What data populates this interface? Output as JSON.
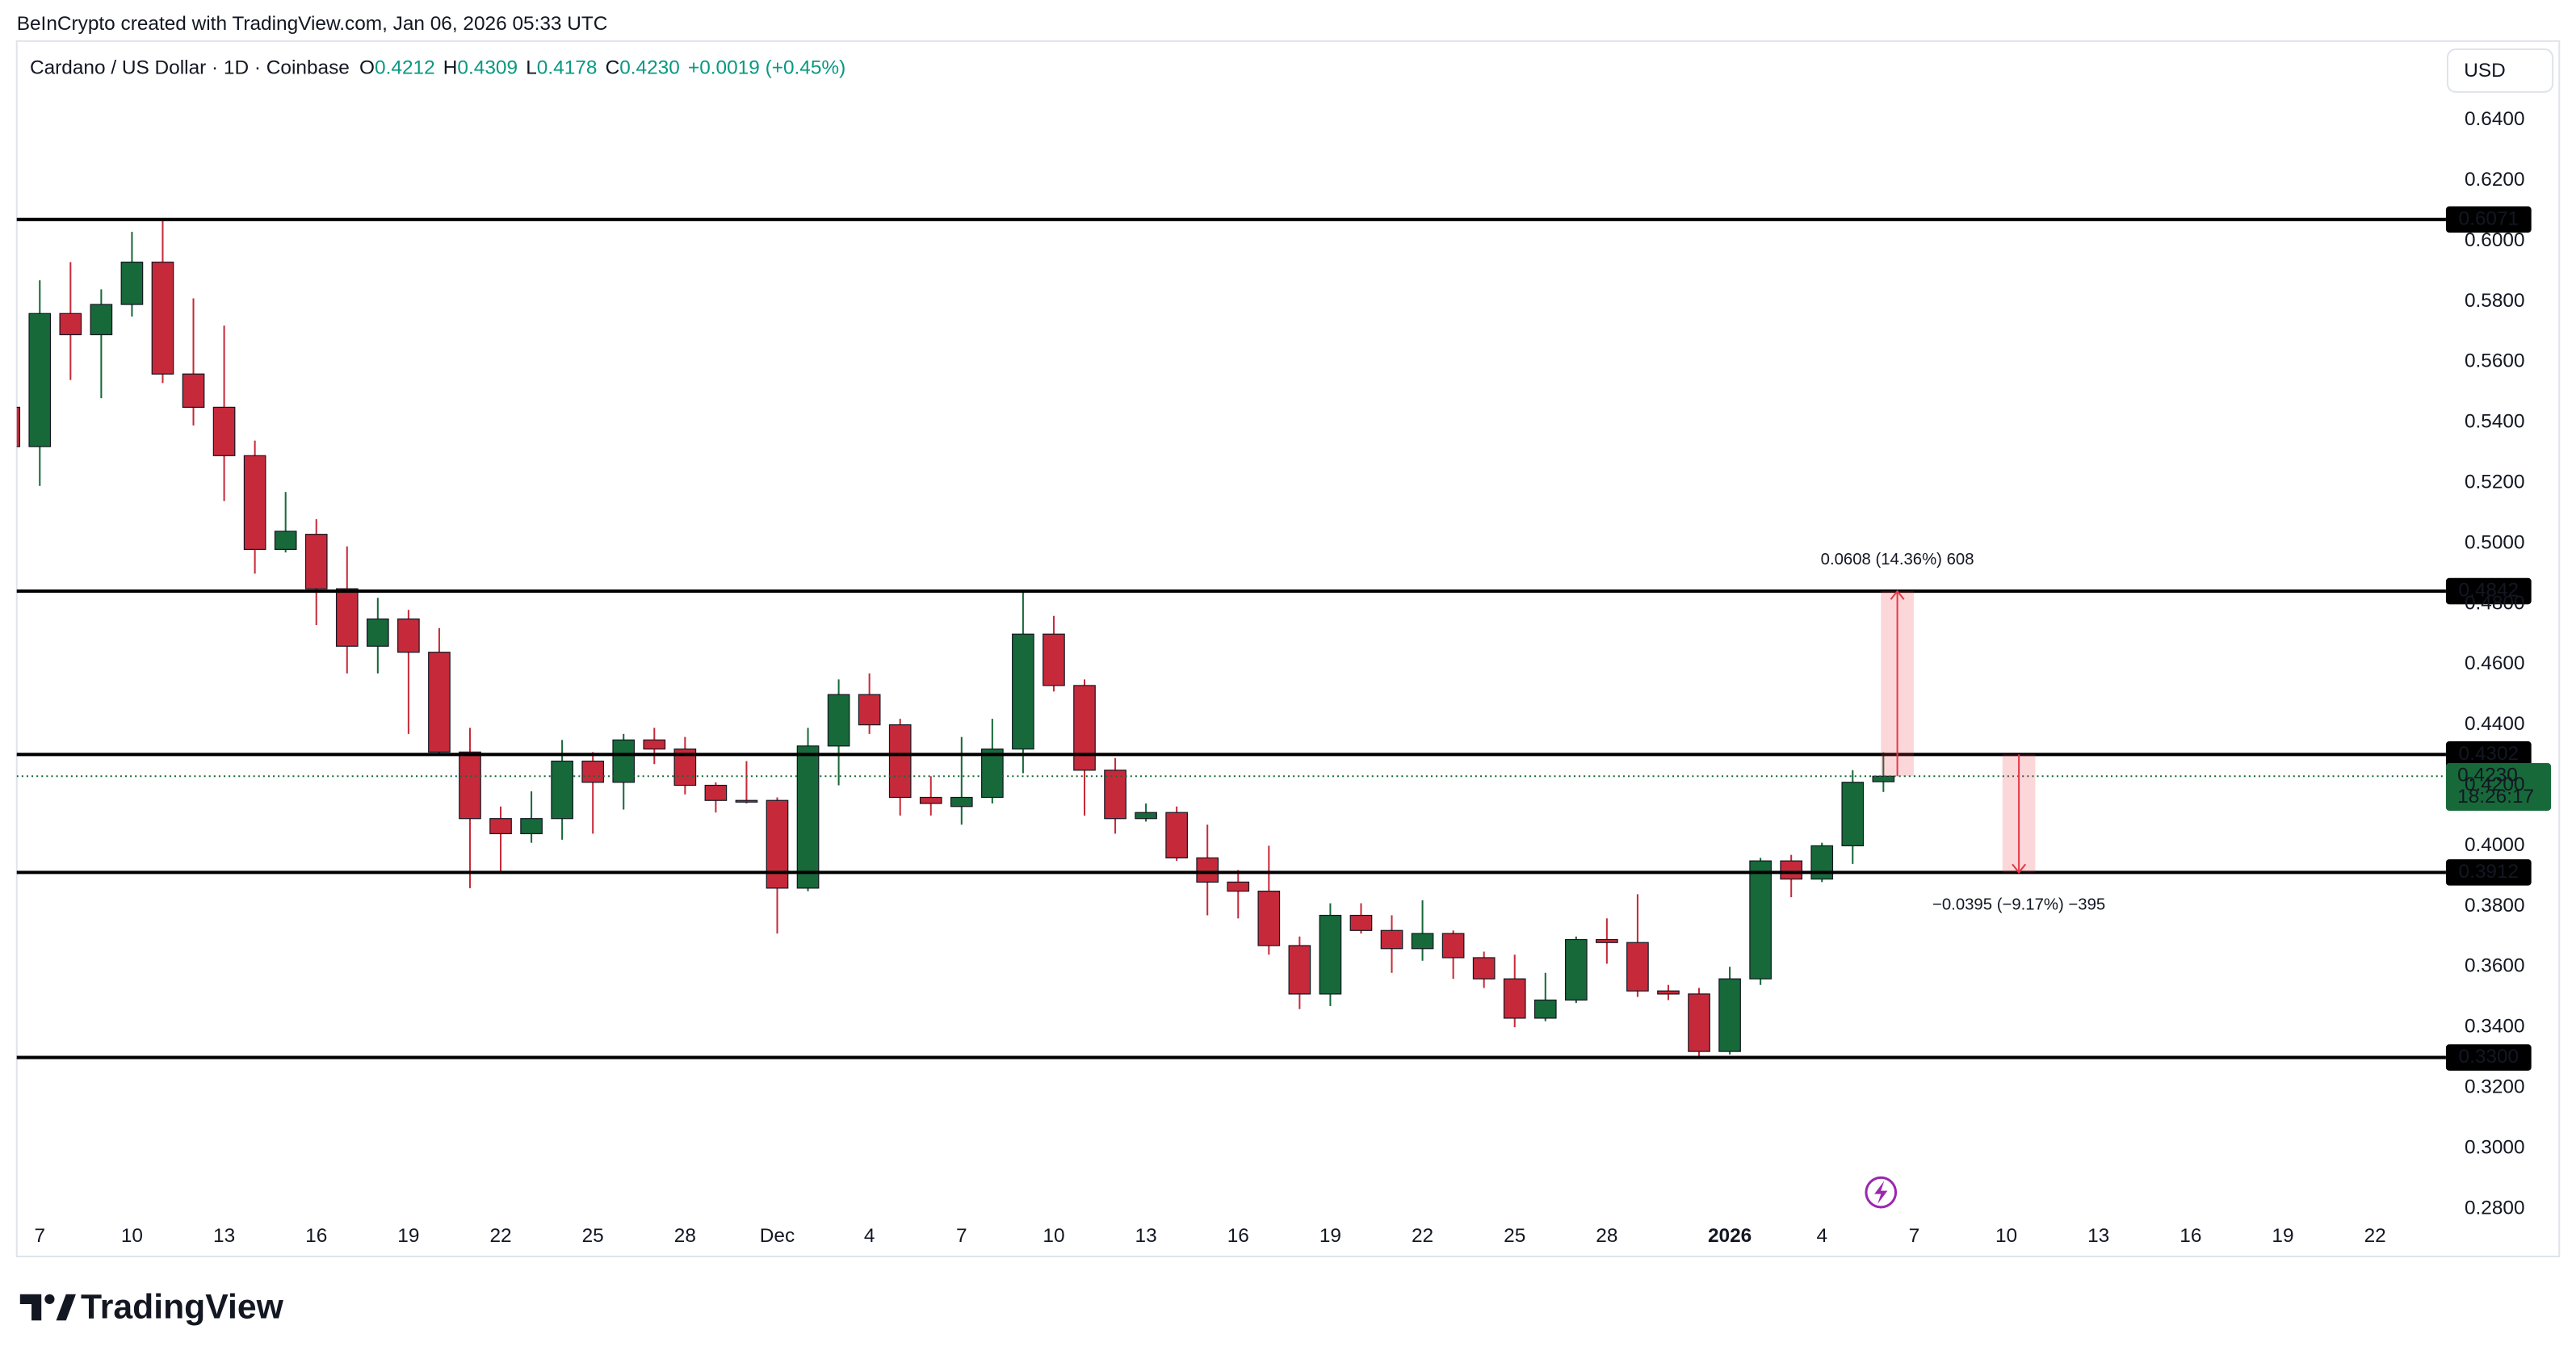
{
  "header": "BeInCrypto created with TradingView.com, Jan 06, 2026 05:33 UTC",
  "brand": "TradingView",
  "currency": "USD",
  "chart_data": {
    "type": "candlestick",
    "title": "Cardano / US Dollar · 1D · Coinbase",
    "legend": [
      {
        "key": "O",
        "value": "0.4212"
      },
      {
        "key": "H",
        "value": "0.4309"
      },
      {
        "key": "L",
        "value": "0.4178"
      },
      {
        "key": "C",
        "value": "0.4230"
      }
    ],
    "change": "+0.0019 (+0.45%)",
    "up_color": "#17693a",
    "down_color": "#c62a3a",
    "grid": false,
    "categories": [
      "6",
      "7",
      "8",
      "9",
      "10",
      "11",
      "12",
      "13",
      "14",
      "15",
      "16",
      "17",
      "18",
      "19",
      "20",
      "21",
      "22",
      "23",
      "24",
      "25",
      "26",
      "27",
      "28",
      "29",
      "30",
      "1",
      "2",
      "3",
      "4",
      "5",
      "6",
      "7",
      "8",
      "9",
      "10",
      "11",
      "12",
      "13",
      "14",
      "15",
      "16",
      "17",
      "18",
      "19",
      "20",
      "21",
      "22",
      "23",
      "24",
      "25",
      "26",
      "27",
      "28",
      "29",
      "30",
      "31",
      "1",
      "2",
      "3",
      "4",
      "5",
      "6"
    ],
    "open": [
      0.545,
      0.532,
      0.576,
      0.569,
      0.579,
      0.593,
      0.556,
      0.545,
      0.529,
      0.498,
      0.503,
      0.485,
      0.466,
      0.475,
      0.464,
      0.431,
      0.409,
      0.404,
      0.409,
      0.428,
      0.421,
      0.435,
      0.432,
      0.42,
      0.415,
      0.415,
      0.386,
      0.433,
      0.45,
      0.44,
      0.416,
      0.413,
      0.416,
      0.432,
      0.47,
      0.453,
      0.425,
      0.409,
      0.411,
      0.396,
      0.388,
      0.385,
      0.367,
      0.351,
      0.377,
      0.372,
      0.366,
      0.371,
      0.363,
      0.356,
      0.343,
      0.349,
      0.369,
      0.368,
      0.352,
      0.351,
      0.332,
      0.356,
      0.395,
      0.389,
      0.4,
      0.4212
    ],
    "high": [
      0.55,
      0.587,
      0.593,
      0.584,
      0.603,
      0.607,
      0.581,
      0.572,
      0.534,
      0.517,
      0.508,
      0.499,
      0.482,
      0.478,
      0.472,
      0.439,
      0.413,
      0.418,
      0.435,
      0.431,
      0.437,
      0.439,
      0.436,
      0.421,
      0.428,
      0.416,
      0.439,
      0.455,
      0.457,
      0.442,
      0.423,
      0.436,
      0.442,
      0.484,
      0.476,
      0.455,
      0.429,
      0.414,
      0.413,
      0.407,
      0.392,
      0.4,
      0.37,
      0.381,
      0.381,
      0.377,
      0.382,
      0.372,
      0.365,
      0.364,
      0.358,
      0.37,
      0.376,
      0.384,
      0.354,
      0.353,
      0.36,
      0.396,
      0.397,
      0.401,
      0.425,
      0.4309
    ],
    "low": [
      0.528,
      0.519,
      0.554,
      0.548,
      0.575,
      0.553,
      0.539,
      0.514,
      0.49,
      0.497,
      0.473,
      0.457,
      0.457,
      0.437,
      0.43,
      0.386,
      0.391,
      0.401,
      0.402,
      0.404,
      0.412,
      0.427,
      0.417,
      0.411,
      0.414,
      0.371,
      0.385,
      0.42,
      0.437,
      0.41,
      0.41,
      0.407,
      0.414,
      0.424,
      0.451,
      0.41,
      0.404,
      0.408,
      0.395,
      0.377,
      0.376,
      0.364,
      0.346,
      0.347,
      0.371,
      0.358,
      0.362,
      0.356,
      0.353,
      0.34,
      0.342,
      0.348,
      0.361,
      0.35,
      0.349,
      0.33,
      0.331,
      0.354,
      0.383,
      0.388,
      0.394,
      0.4178
    ],
    "close": [
      0.532,
      0.576,
      0.569,
      0.579,
      0.593,
      0.556,
      0.545,
      0.529,
      0.498,
      0.504,
      0.485,
      0.466,
      0.475,
      0.464,
      0.431,
      0.409,
      0.404,
      0.409,
      0.428,
      0.421,
      0.435,
      0.432,
      0.42,
      0.415,
      0.4145,
      0.386,
      0.433,
      0.45,
      0.44,
      0.416,
      0.414,
      0.416,
      0.432,
      0.47,
      0.453,
      0.425,
      0.409,
      0.411,
      0.396,
      0.388,
      0.385,
      0.367,
      0.351,
      0.377,
      0.372,
      0.366,
      0.371,
      0.363,
      0.356,
      0.343,
      0.349,
      0.369,
      0.368,
      0.352,
      0.351,
      0.332,
      0.356,
      0.395,
      0.389,
      0.4,
      0.421,
      0.423
    ],
    "xlim": [
      0.25,
      79.2
    ],
    "xticks": [
      {
        "value": 1,
        "label": "7"
      },
      {
        "value": 4,
        "label": "10"
      },
      {
        "value": 7,
        "label": "13"
      },
      {
        "value": 10,
        "label": "16"
      },
      {
        "value": 13,
        "label": "19"
      },
      {
        "value": 16,
        "label": "22"
      },
      {
        "value": 19,
        "label": "25"
      },
      {
        "value": 22,
        "label": "28"
      },
      {
        "value": 25,
        "label": "Dec"
      },
      {
        "value": 28,
        "label": "4"
      },
      {
        "value": 31,
        "label": "7"
      },
      {
        "value": 34,
        "label": "10"
      },
      {
        "value": 37,
        "label": "13"
      },
      {
        "value": 40,
        "label": "16"
      },
      {
        "value": 43,
        "label": "19"
      },
      {
        "value": 46,
        "label": "22"
      },
      {
        "value": 49,
        "label": "25"
      },
      {
        "value": 52,
        "label": "28"
      },
      {
        "value": 56,
        "label": "2026",
        "bold": true
      },
      {
        "value": 59,
        "label": "4"
      },
      {
        "value": 62,
        "label": "7"
      },
      {
        "value": 65,
        "label": "10"
      },
      {
        "value": 68,
        "label": "13"
      },
      {
        "value": 71,
        "label": "16"
      },
      {
        "value": 74,
        "label": "19"
      },
      {
        "value": 77,
        "label": "22"
      }
    ],
    "ylim": [
      0.2767,
      0.6661
    ],
    "yticks": [
      {
        "value": 0.28,
        "label": "0.2800"
      },
      {
        "value": 0.3,
        "label": "0.3000"
      },
      {
        "value": 0.32,
        "label": "0.3200"
      },
      {
        "value": 0.34,
        "label": "0.3400"
      },
      {
        "value": 0.36,
        "label": "0.3600"
      },
      {
        "value": 0.38,
        "label": "0.3800"
      },
      {
        "value": 0.4,
        "label": "0.4000"
      },
      {
        "value": 0.42,
        "label": "0.4200"
      },
      {
        "value": 0.44,
        "label": "0.4400"
      },
      {
        "value": 0.46,
        "label": "0.4600"
      },
      {
        "value": 0.48,
        "label": "0.4800"
      },
      {
        "value": 0.5,
        "label": "0.5000"
      },
      {
        "value": 0.52,
        "label": "0.5200"
      },
      {
        "value": 0.54,
        "label": "0.5400"
      },
      {
        "value": 0.56,
        "label": "0.5600"
      },
      {
        "value": 0.58,
        "label": "0.5800"
      },
      {
        "value": 0.6,
        "label": "0.6000"
      },
      {
        "value": 0.62,
        "label": "0.6200"
      },
      {
        "value": 0.64,
        "label": "0.6400"
      }
    ],
    "levels": [
      0.6071,
      0.4842,
      0.4302,
      0.3912,
      {
        "value": 0.33,
        "label": "0.3300"
      }
    ],
    "price_label": {
      "value": 0.423,
      "label": "0.4230",
      "countdown": "18:26:17"
    },
    "measurements": [
      {
        "text": "0.0608 (14.36%) 608"
      },
      {
        "text": "−0.0395 (−9.17%) −395"
      }
    ]
  }
}
